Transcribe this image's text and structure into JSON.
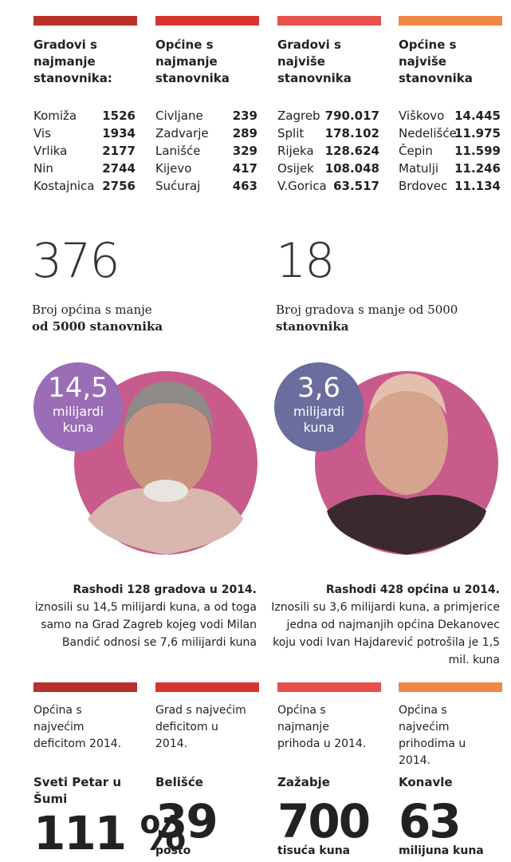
{
  "top_columns": [
    {
      "heading": "Gradovi s najmanje stanovnika:",
      "rows": [
        [
          "Komiža",
          "1526"
        ],
        [
          "Vis",
          "1934"
        ],
        [
          "Vrlika",
          "2177"
        ],
        [
          "Nin",
          "2744"
        ],
        [
          "Kostajnica",
          "2756"
        ]
      ]
    },
    {
      "heading": "Općine s najmanje stanovnika",
      "rows": [
        [
          "Civljane",
          "239"
        ],
        [
          "Zadvarje",
          "289"
        ],
        [
          "Lanišće",
          "329"
        ],
        [
          "Kijevo",
          "417"
        ],
        [
          "Sućuraj",
          "463"
        ]
      ]
    },
    {
      "heading": "Gradovi s najviše stanovnika",
      "rows": [
        [
          "Zagreb",
          "790.017"
        ],
        [
          "Split",
          "178.102"
        ],
        [
          "Rijeka",
          "128.624"
        ],
        [
          "Osijek",
          "108.048"
        ],
        [
          "V.Gorica",
          "63.517"
        ]
      ]
    },
    {
      "heading": "Općine s najviše stanovnika",
      "rows": [
        [
          "Viškovo",
          "14.445"
        ],
        [
          "Nedelišće",
          "11.975"
        ],
        [
          "Čepin",
          "11.599"
        ],
        [
          "Matulji",
          "11.246"
        ],
        [
          "Brdovec",
          "11.134"
        ]
      ]
    }
  ],
  "stats": [
    {
      "number": "376",
      "text": "Broj općina s manje",
      "bold": "od 5000 stanovnika"
    },
    {
      "number": "18",
      "text": "Broj gradova s manje od 5000",
      "bold": "stanovnika"
    }
  ],
  "people": [
    {
      "amount": "14,5",
      "unit": "milijardi kuna",
      "caption_bold": "Rashodi 128 gradova u 2014.",
      "caption": "iznosili su 14,5 milijardi kuna, a od toga samo na Grad Zagreb kojeg vodi Milan Bandić odnosi se 7,6 milijardi kuna"
    },
    {
      "amount": "3,6",
      "unit": "milijardi kuna",
      "caption_bold": "Rashodi 428 općina u 2014.",
      "caption": "Iznosili su 3,6 milijardi kuna, a primjerice jedna od najmanjih općina Dekanovec koju vodi Ivan Hajdarević potrošila je 1,5 mil. kuna"
    }
  ],
  "bottom_columns": [
    {
      "label": "Općina s najvećim deficitom 2014.",
      "name": "Sveti Petar u Šumi",
      "value": "111 %"
    },
    {
      "label": "Grad s najvećim deficitom u 2014.",
      "name": "Belišće",
      "value": "39",
      "unit": "posto"
    },
    {
      "label": "Općina s najmanje prihoda u 2014.",
      "name": "Zažabje",
      "value": "700",
      "unit": "tisuća kuna"
    },
    {
      "label": "Općina s najvećim prihodima u 2014.",
      "name": "Konavle",
      "value": "63",
      "unit": "milijuna kuna"
    }
  ]
}
